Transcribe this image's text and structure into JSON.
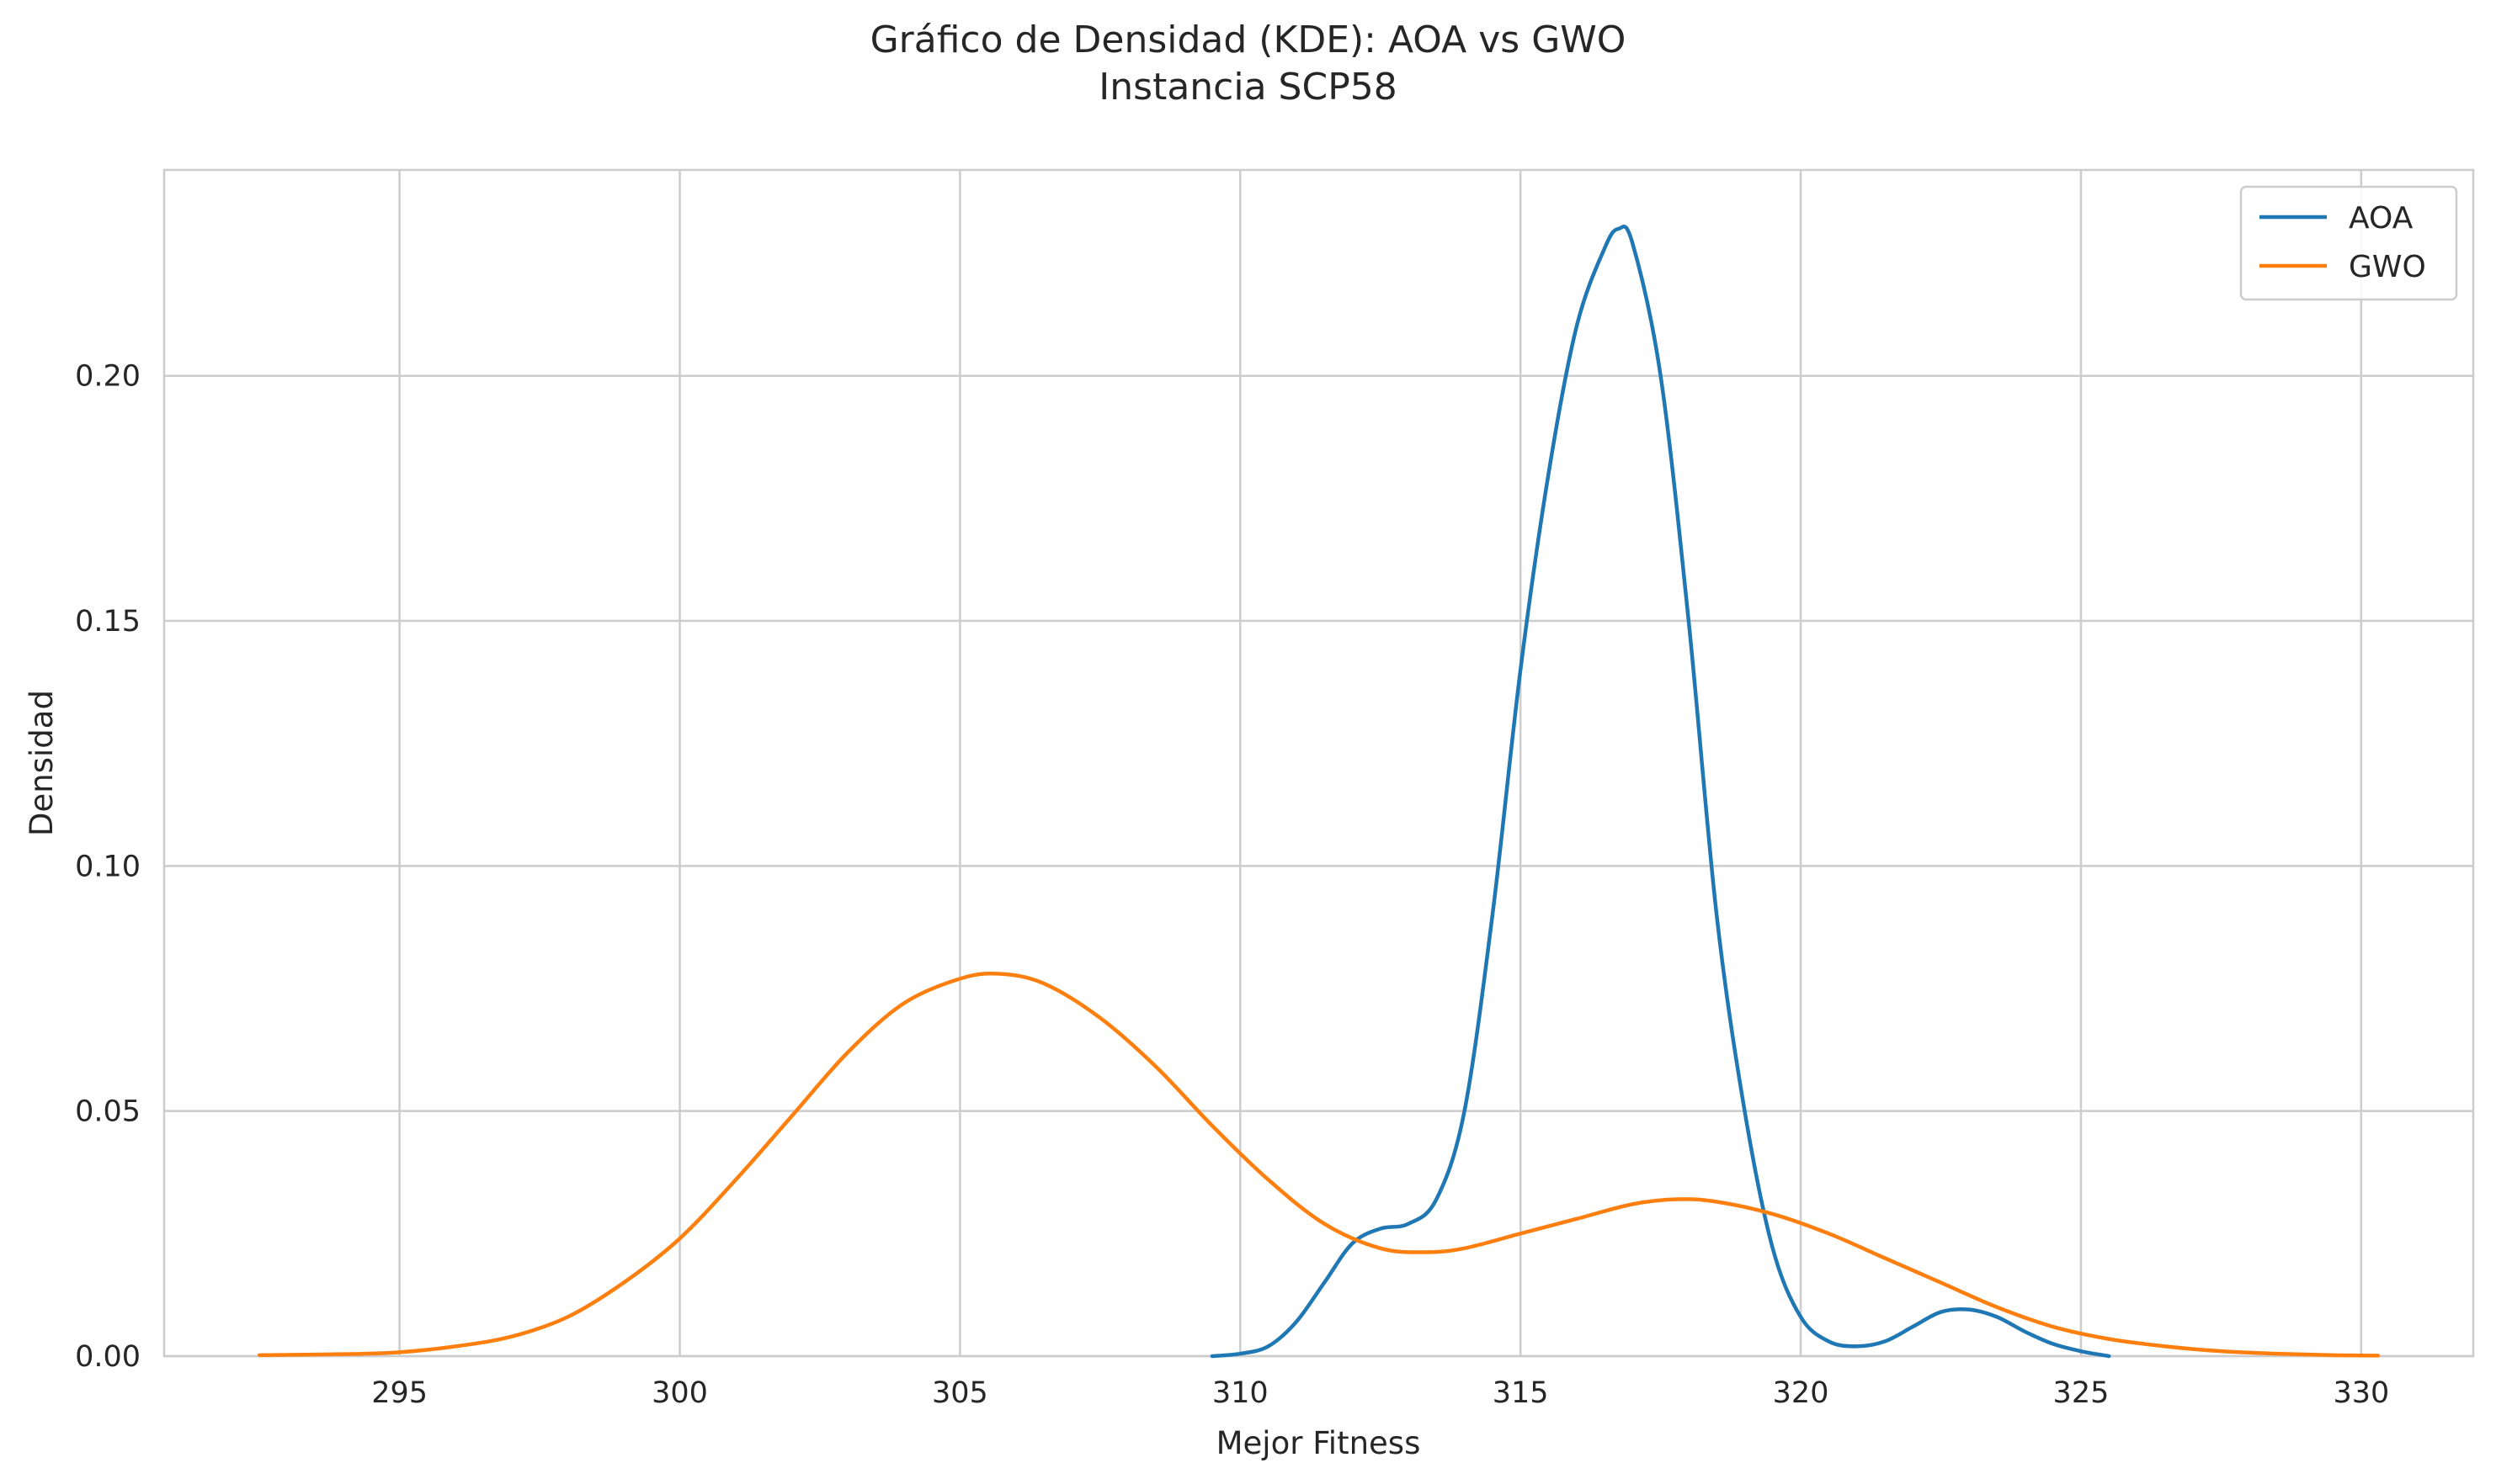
{
  "chart_data": {
    "type": "line",
    "title": "Gráfico de Densidad (KDE): AOA vs GWO",
    "subtitle": "Instancia SCP58",
    "xlabel": "Mejor Fitness",
    "ylabel": "Densidad",
    "xlim": [
      290.8,
      332.0
    ],
    "ylim": [
      0,
      0.242
    ],
    "xticks": [
      295,
      300,
      305,
      310,
      315,
      320,
      325,
      330
    ],
    "xtick_labels": [
      "295",
      "300",
      "305",
      "310",
      "315",
      "320",
      "325",
      "330"
    ],
    "yticks": [
      0.0,
      0.05,
      0.1,
      0.15,
      0.2
    ],
    "ytick_labels": [
      "0.00",
      "0.05",
      "0.10",
      "0.15",
      "0.20"
    ],
    "grid": true,
    "legend_position": "top-right",
    "series": [
      {
        "name": "AOA",
        "color": "#1f77b4",
        "x": [
          309.5,
          310.0,
          310.5,
          311.0,
          311.5,
          312.0,
          312.5,
          313.0,
          313.5,
          314.0,
          314.5,
          315.0,
          315.5,
          316.0,
          316.5,
          316.75,
          317.0,
          317.5,
          318.0,
          318.5,
          319.0,
          319.5,
          320.0,
          320.5,
          321.0,
          321.5,
          322.0,
          322.5,
          323.0,
          323.5,
          324.0,
          324.5,
          325.0,
          325.5
        ],
        "y": [
          0.0,
          0.0005,
          0.002,
          0.007,
          0.015,
          0.023,
          0.026,
          0.027,
          0.032,
          0.05,
          0.09,
          0.14,
          0.18,
          0.21,
          0.226,
          0.23,
          0.227,
          0.2,
          0.15,
          0.09,
          0.05,
          0.022,
          0.008,
          0.003,
          0.002,
          0.003,
          0.006,
          0.009,
          0.0095,
          0.008,
          0.005,
          0.0025,
          0.001,
          0.0
        ]
      },
      {
        "name": "GWO",
        "color": "#ff7f0e",
        "x": [
          292.5,
          294.0,
          295.0,
          296.0,
          297.0,
          298.0,
          299.0,
          300.0,
          301.0,
          302.0,
          303.0,
          304.0,
          305.0,
          305.7,
          306.5,
          307.5,
          308.5,
          309.5,
          310.5,
          311.5,
          312.5,
          313.3,
          314.0,
          315.0,
          316.0,
          317.0,
          317.8,
          318.5,
          319.5,
          320.5,
          321.5,
          322.5,
          323.5,
          324.5,
          325.5,
          326.5,
          327.5,
          328.5,
          329.5,
          330.3
        ],
        "y": [
          0.0002,
          0.0004,
          0.0008,
          0.002,
          0.004,
          0.008,
          0.015,
          0.024,
          0.036,
          0.049,
          0.062,
          0.072,
          0.077,
          0.078,
          0.076,
          0.069,
          0.059,
          0.047,
          0.036,
          0.027,
          0.022,
          0.0212,
          0.022,
          0.025,
          0.028,
          0.031,
          0.032,
          0.0315,
          0.029,
          0.025,
          0.02,
          0.015,
          0.01,
          0.006,
          0.0035,
          0.002,
          0.001,
          0.0005,
          0.0002,
          0.0001
        ]
      }
    ]
  }
}
